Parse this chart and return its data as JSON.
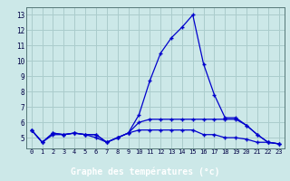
{
  "title": "Graphe des températures (°c)",
  "bg_color": "#cce8e8",
  "grid_color": "#aacccc",
  "line_color": "#0000cc",
  "marker": "+",
  "hours": [
    0,
    1,
    2,
    3,
    4,
    5,
    6,
    7,
    8,
    9,
    10,
    11,
    12,
    13,
    14,
    15,
    16,
    17,
    18,
    19,
    20,
    21,
    22,
    23
  ],
  "series1": [
    5.5,
    4.7,
    5.3,
    5.2,
    5.3,
    5.2,
    5.2,
    4.7,
    5.0,
    5.3,
    6.5,
    8.7,
    10.5,
    11.5,
    12.2,
    13.0,
    9.8,
    7.8,
    6.3,
    6.3,
    5.8,
    5.2,
    4.7,
    4.6
  ],
  "series2": [
    5.5,
    4.7,
    5.3,
    5.2,
    5.3,
    5.2,
    5.2,
    4.7,
    5.0,
    5.3,
    6.0,
    6.2,
    6.2,
    6.2,
    6.2,
    6.2,
    6.2,
    6.2,
    6.2,
    6.2,
    5.8,
    5.2,
    4.7,
    4.6
  ],
  "series3": [
    5.5,
    4.7,
    5.2,
    5.2,
    5.3,
    5.2,
    5.0,
    4.7,
    5.0,
    5.3,
    5.5,
    5.5,
    5.5,
    5.5,
    5.5,
    5.5,
    5.2,
    5.2,
    5.0,
    5.0,
    4.9,
    4.7,
    4.7,
    4.6
  ],
  "ylim": [
    4.3,
    13.5
  ],
  "yticks": [
    5,
    6,
    7,
    8,
    9,
    10,
    11,
    12,
    13
  ],
  "xlim": [
    -0.5,
    23.5
  ],
  "label_bg": "#000080",
  "label_fg": "#ffffff",
  "label_fontsize": 7.0
}
